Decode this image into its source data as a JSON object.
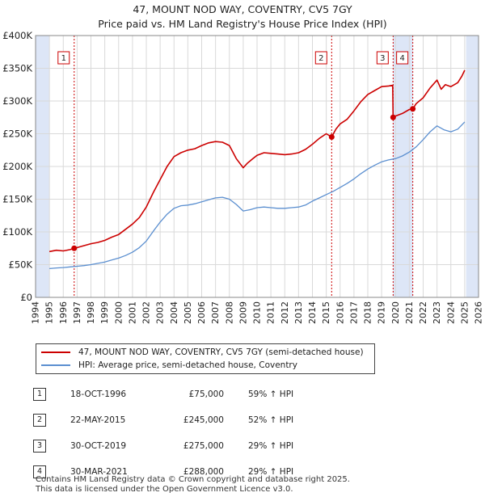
{
  "title": "47, MOUNT NOD WAY, COVENTRY, CV5 7GY",
  "subtitle": "Price paid vs. HM Land Registry's House Price Index (HPI)",
  "chart_data": {
    "type": "line",
    "title": "47, MOUNT NOD WAY, COVENTRY, CV5 7GY",
    "subtitle": "Price paid vs. HM Land Registry's House Price Index (HPI)",
    "xlim": [
      1994,
      2026
    ],
    "ylim": [
      0,
      400000
    ],
    "grid": true,
    "x_ticks": [
      1994,
      1995,
      1996,
      1997,
      1998,
      1999,
      2000,
      2001,
      2002,
      2003,
      2004,
      2005,
      2006,
      2007,
      2008,
      2009,
      2010,
      2011,
      2012,
      2013,
      2014,
      2015,
      2016,
      2017,
      2018,
      2019,
      2020,
      2021,
      2022,
      2023,
      2024,
      2025,
      2026
    ],
    "y_ticks": [
      0,
      50000,
      100000,
      150000,
      200000,
      250000,
      300000,
      350000,
      400000
    ],
    "y_tick_labels": [
      "£0",
      "£50K",
      "£100K",
      "£150K",
      "£200K",
      "£250K",
      "£300K",
      "£350K",
      "£400K"
    ],
    "colors": {
      "property": "#cc0000",
      "hpi": "#5b8fd0",
      "shade": "#dde6f7",
      "grid": "#d9d9d9"
    },
    "series": [
      {
        "name": "47, MOUNT NOD WAY, COVENTRY, CV5 7GY (semi-detached house)",
        "color": "#cc0000",
        "x": [
          1995.0,
          1995.5,
          1996.0,
          1996.5,
          1996.79,
          1997.0,
          1997.5,
          1998.0,
          1998.5,
          1999.0,
          1999.5,
          2000.0,
          2000.5,
          2001.0,
          2001.5,
          2002.0,
          2002.5,
          2003.0,
          2003.5,
          2004.0,
          2004.5,
          2005.0,
          2005.5,
          2006.0,
          2006.5,
          2007.0,
          2007.5,
          2008.0,
          2008.5,
          2009.0,
          2009.3,
          2009.7,
          2010.0,
          2010.5,
          2011.0,
          2011.5,
          2012.0,
          2012.5,
          2013.0,
          2013.5,
          2014.0,
          2014.5,
          2015.0,
          2015.39,
          2015.7,
          2016.0,
          2016.5,
          2017.0,
          2017.5,
          2018.0,
          2018.5,
          2019.0,
          2019.5,
          2019.8,
          2019.83,
          2020.0,
          2020.5,
          2021.0,
          2021.25,
          2021.5,
          2022.0,
          2022.5,
          2023.0,
          2023.3,
          2023.6,
          2024.0,
          2024.5,
          2024.8,
          2025.0
        ],
        "values": [
          70000,
          72000,
          71000,
          73000,
          75000,
          76000,
          79000,
          82000,
          84000,
          87000,
          92000,
          96000,
          104000,
          112000,
          122000,
          138000,
          160000,
          180000,
          200000,
          215000,
          221000,
          225000,
          227000,
          232000,
          236000,
          238000,
          237000,
          232000,
          212000,
          198000,
          205000,
          212000,
          217000,
          221000,
          220000,
          219000,
          218000,
          219000,
          221000,
          226000,
          234000,
          243000,
          250000,
          245000,
          257000,
          265000,
          272000,
          285000,
          299000,
          310000,
          316000,
          322000,
          323000,
          324000,
          275000,
          277000,
          281000,
          287000,
          288000,
          296000,
          305000,
          320000,
          332000,
          318000,
          325000,
          322000,
          328000,
          338000,
          347000
        ]
      },
      {
        "name": "HPI: Average price, semi-detached house, Coventry",
        "color": "#5b8fd0",
        "x": [
          1995.0,
          1995.5,
          1996.0,
          1996.5,
          1997.0,
          1997.5,
          1998.0,
          1998.5,
          1999.0,
          1999.5,
          2000.0,
          2000.5,
          2001.0,
          2001.5,
          2002.0,
          2002.5,
          2003.0,
          2003.5,
          2004.0,
          2004.5,
          2005.0,
          2005.5,
          2006.0,
          2006.5,
          2007.0,
          2007.5,
          2008.0,
          2008.5,
          2009.0,
          2009.5,
          2010.0,
          2010.5,
          2011.0,
          2011.5,
          2012.0,
          2012.5,
          2013.0,
          2013.5,
          2014.0,
          2014.5,
          2015.0,
          2015.5,
          2016.0,
          2016.5,
          2017.0,
          2017.5,
          2018.0,
          2018.5,
          2019.0,
          2019.5,
          2020.0,
          2020.5,
          2021.0,
          2021.5,
          2022.0,
          2022.5,
          2023.0,
          2023.5,
          2024.0,
          2024.5,
          2025.0
        ],
        "values": [
          44000,
          45000,
          45500,
          46500,
          47500,
          48500,
          50000,
          52000,
          54000,
          57000,
          60000,
          64000,
          69000,
          76000,
          86000,
          101000,
          115000,
          127000,
          136000,
          140000,
          141000,
          143000,
          146000,
          149000,
          152000,
          153000,
          150000,
          142000,
          132000,
          134000,
          137000,
          138000,
          137000,
          136000,
          136000,
          137000,
          138000,
          141000,
          147000,
          152000,
          157000,
          162000,
          168000,
          174000,
          181000,
          189000,
          196000,
          202000,
          207000,
          210000,
          212000,
          216000,
          222000,
          230000,
          241000,
          253000,
          262000,
          256000,
          253000,
          257000,
          268000
        ]
      }
    ],
    "transactions": [
      {
        "n": "1",
        "x": 1996.79,
        "date": "18-OCT-1996",
        "price": "£75,000",
        "value": 75000,
        "hpi": "59% ↑ HPI"
      },
      {
        "n": "2",
        "x": 2015.39,
        "date": "22-MAY-2015",
        "price": "£245,000",
        "value": 245000,
        "hpi": "52% ↑ HPI"
      },
      {
        "n": "3",
        "x": 2019.83,
        "date": "30-OCT-2019",
        "price": "£275,000",
        "value": 275000,
        "hpi": "29% ↑ HPI"
      },
      {
        "n": "4",
        "x": 2021.25,
        "date": "30-MAR-2021",
        "price": "£288,000",
        "value": 288000,
        "hpi": "29% ↑ HPI"
      }
    ],
    "shaded_ranges": [
      [
        1994,
        1995
      ],
      [
        2019.83,
        2021.25
      ],
      [
        2025.1,
        2026
      ]
    ]
  },
  "legend": {
    "property": "47, MOUNT NOD WAY, COVENTRY, CV5 7GY (semi-detached house)",
    "hpi": "HPI: Average price, semi-detached house, Coventry"
  },
  "footer": {
    "line1": "Contains HM Land Registry data © Crown copyright and database right 2025.",
    "line2": "This data is licensed under the Open Government Licence v3.0."
  }
}
